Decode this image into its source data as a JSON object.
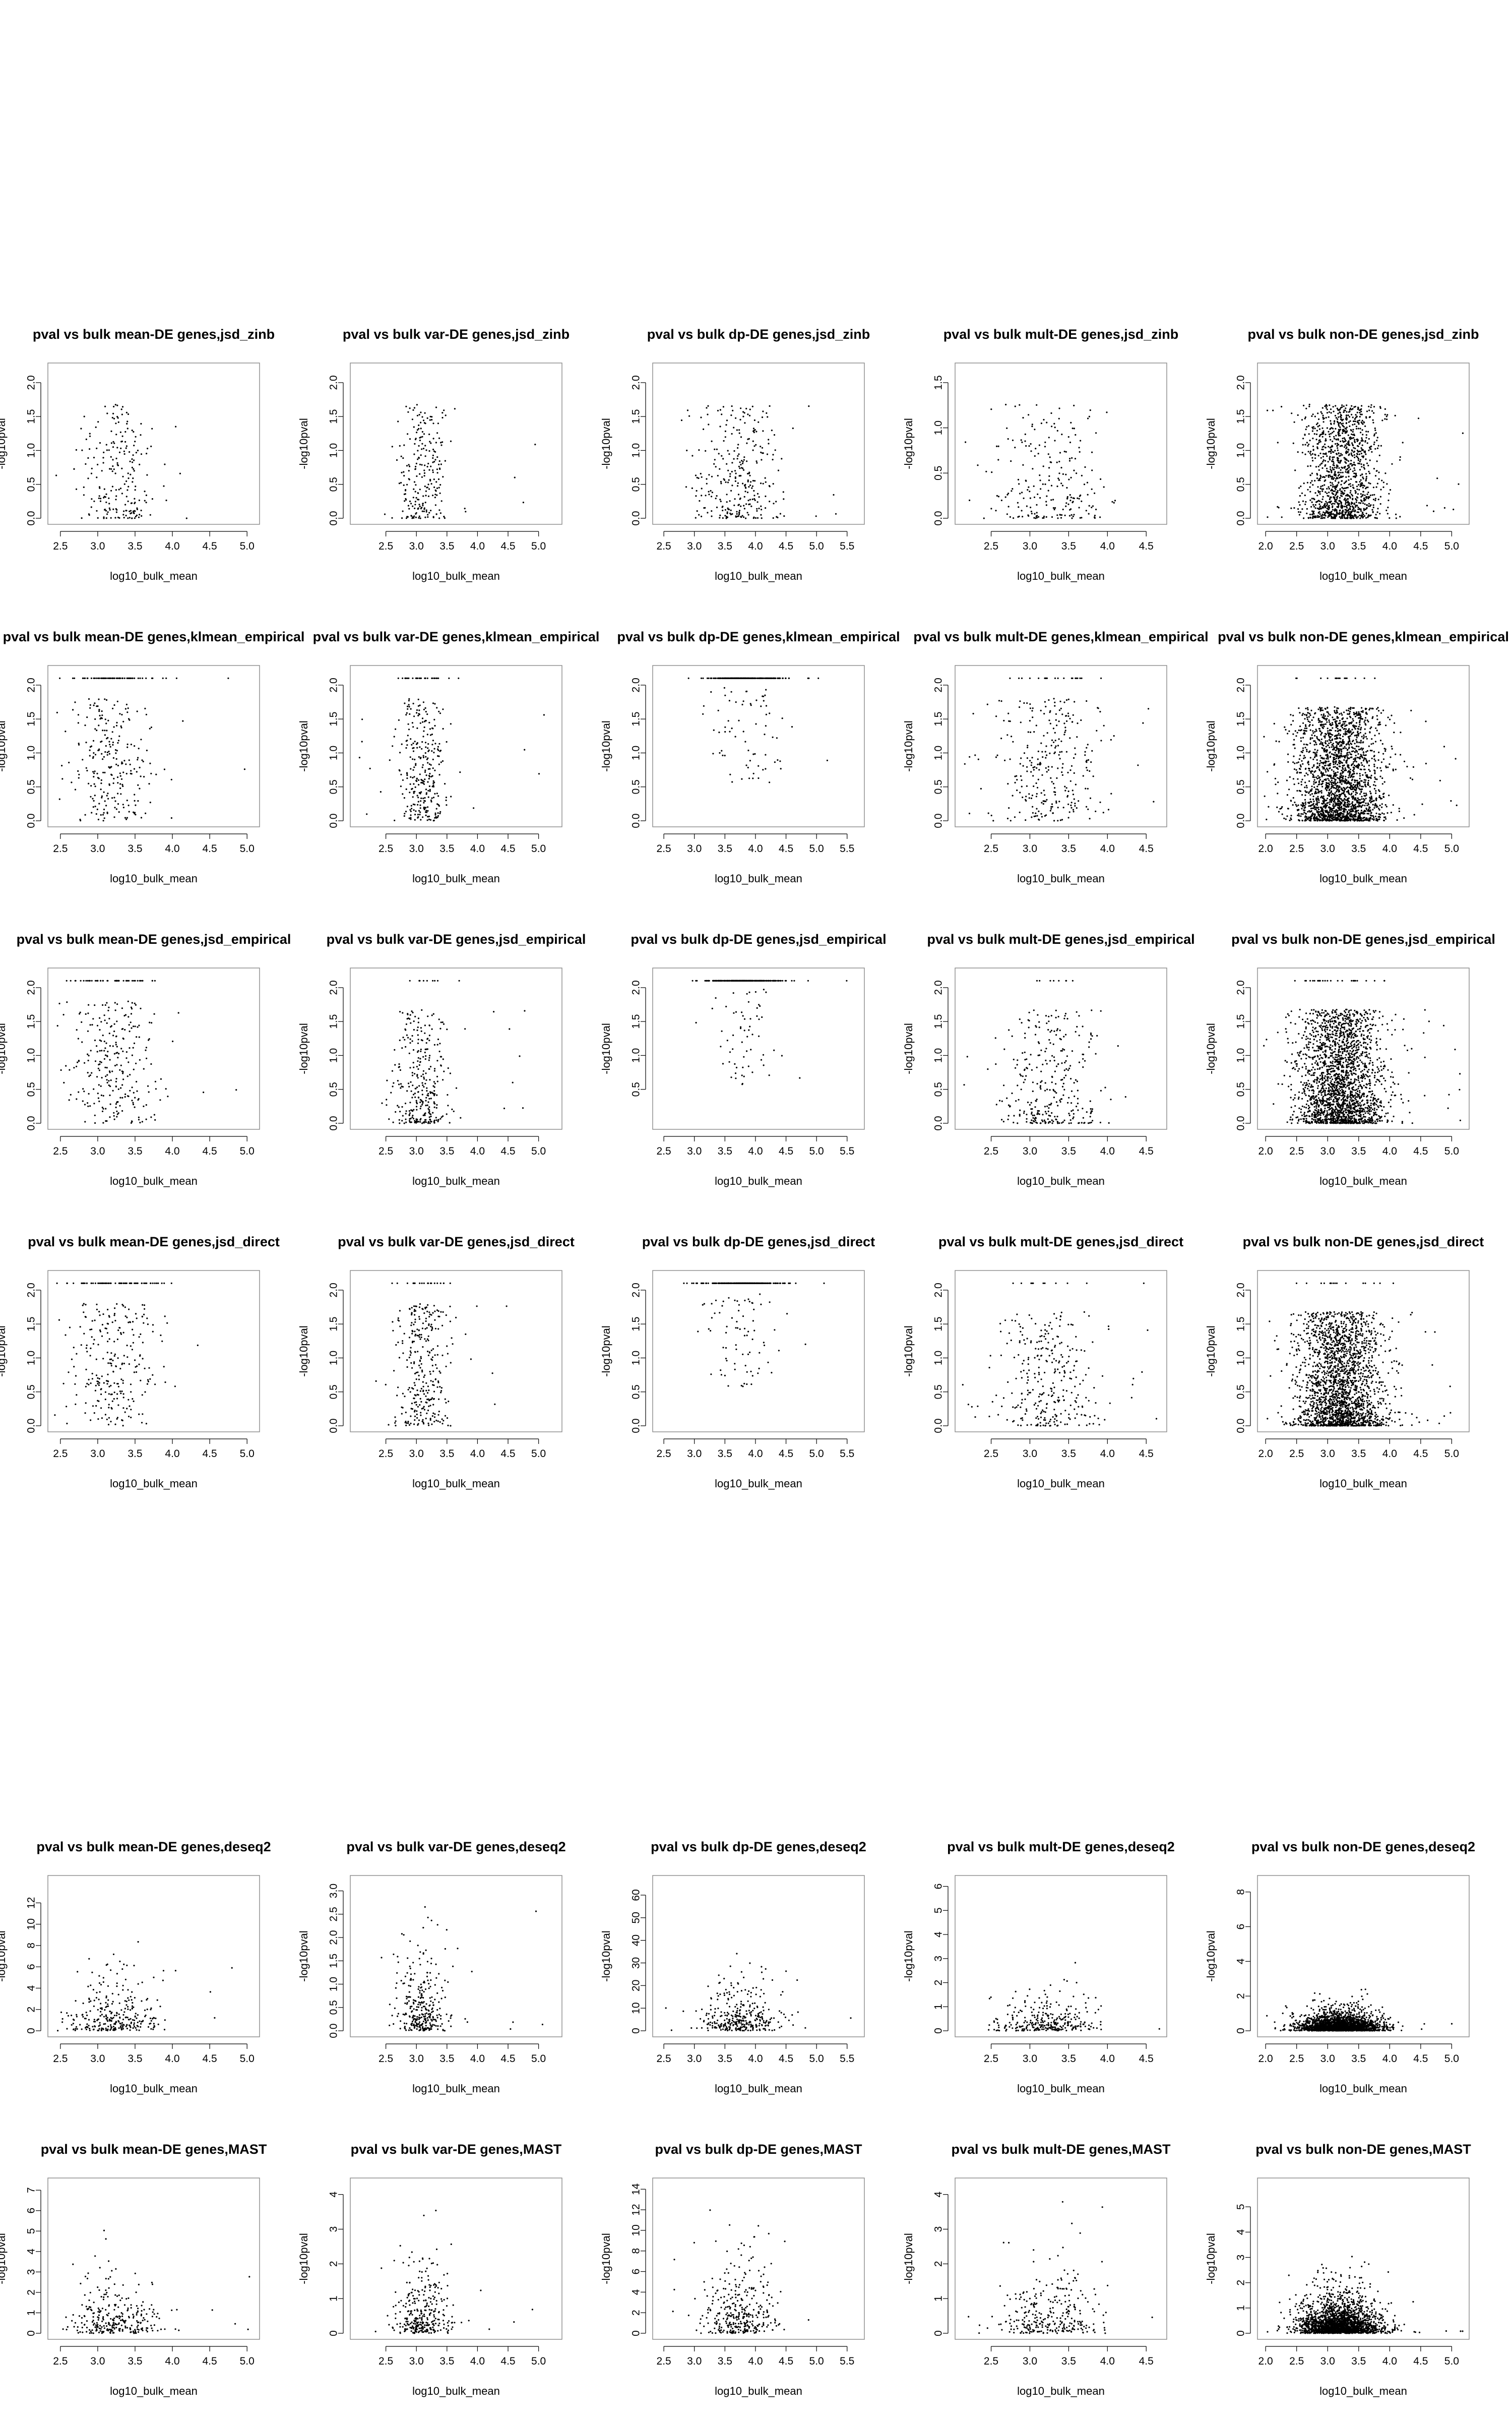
{
  "colors": {
    "background": "#ffffff",
    "points": "#000000",
    "frame": "#888888",
    "axis": "#000000"
  },
  "chart_data": [
    {
      "type": "scatter",
      "title": "pval vs bulk mean-DE genes,jsd_zinb",
      "xlabel": "log10_bulk_mean",
      "ylabel": "-log10pval",
      "xlim": [
        2.4,
        5.1
      ],
      "ylim": [
        0,
        2.2
      ],
      "xticks": [
        2.5,
        3.0,
        3.5,
        4.0,
        4.5,
        5.0
      ],
      "yticks": [
        0.0,
        0.5,
        1.0,
        1.5,
        2.0
      ],
      "n_points": 220,
      "x_center": 3.3,
      "x_spread": 0.25,
      "y_profile": "low",
      "outlier_rate": 0.04,
      "ceiling": false
    },
    {
      "type": "scatter",
      "title": "pval vs bulk var-DE genes,jsd_zinb",
      "xlabel": "log10_bulk_mean",
      "ylabel": "-log10pval",
      "xlim": [
        2.0,
        5.3
      ],
      "ylim": [
        0,
        2.2
      ],
      "xticks": [
        2.5,
        3.0,
        3.5,
        4.0,
        4.5,
        5.0
      ],
      "yticks": [
        0.0,
        0.5,
        1.0,
        1.5,
        2.0
      ],
      "n_points": 240,
      "x_center": 3.1,
      "x_spread": 0.2,
      "y_profile": "low",
      "outlier_rate": 0.04,
      "ceiling": false
    },
    {
      "type": "scatter",
      "title": "pval vs bulk dp-DE genes,jsd_zinb",
      "xlabel": "log10_bulk_mean",
      "ylabel": "-log10pval",
      "xlim": [
        2.4,
        5.7
      ],
      "ylim": [
        0,
        2.2
      ],
      "xticks": [
        2.5,
        3.0,
        3.5,
        4.0,
        4.5,
        5.0,
        5.5
      ],
      "yticks": [
        0.0,
        0.5,
        1.0,
        1.5,
        2.0
      ],
      "n_points": 300,
      "x_center": 3.7,
      "x_spread": 0.35,
      "y_profile": "low",
      "outlier_rate": 0.04,
      "ceiling": false
    },
    {
      "type": "scatter",
      "title": "pval vs bulk mult-DE genes,jsd_zinb",
      "xlabel": "log10_bulk_mean",
      "ylabel": "-log10pval",
      "xlim": [
        2.1,
        4.7
      ],
      "ylim": [
        0,
        1.65
      ],
      "xticks": [
        2.5,
        3.0,
        3.5,
        4.0,
        4.5
      ],
      "yticks": [
        0.0,
        0.5,
        1.0,
        1.5
      ],
      "n_points": 230,
      "x_center": 3.3,
      "x_spread": 0.35,
      "y_profile": "low",
      "outlier_rate": 0.05,
      "ceiling": false
    },
    {
      "type": "scatter",
      "title": "pval vs bulk non-DE genes,jsd_zinb",
      "xlabel": "log10_bulk_mean",
      "ylabel": "-log10pval",
      "xlim": [
        1.95,
        5.2
      ],
      "ylim": [
        0,
        2.2
      ],
      "xticks": [
        2.0,
        2.5,
        3.0,
        3.5,
        4.0,
        4.5,
        5.0
      ],
      "yticks": [
        0.0,
        0.5,
        1.0,
        1.5,
        2.0
      ],
      "n_points": 1300,
      "x_center": 3.25,
      "x_spread": 0.3,
      "y_profile": "low",
      "outlier_rate": 0.03,
      "ceiling": false
    },
    {
      "type": "scatter",
      "title": "pval vs bulk mean-DE genes,klmean_empirical",
      "xlabel": "log10_bulk_mean",
      "ylabel": "-log10pval",
      "xlim": [
        2.4,
        5.1
      ],
      "ylim": [
        0,
        2.2
      ],
      "xticks": [
        2.5,
        3.0,
        3.5,
        4.0,
        4.5,
        5.0
      ],
      "yticks": [
        0.0,
        0.5,
        1.0,
        1.5,
        2.0
      ],
      "n_points": 320,
      "x_center": 3.2,
      "x_spread": 0.3,
      "y_profile": "uniform",
      "outlier_rate": 0.03,
      "ceiling": true,
      "ceiling_frac": 0.2
    },
    {
      "type": "scatter",
      "title": "pval vs bulk var-DE genes,klmean_empirical",
      "xlabel": "log10_bulk_mean",
      "ylabel": "-log10pval",
      "xlim": [
        2.0,
        5.3
      ],
      "ylim": [
        0,
        2.2
      ],
      "xticks": [
        2.5,
        3.0,
        3.5,
        4.0,
        4.5,
        5.0
      ],
      "yticks": [
        0.0,
        0.5,
        1.0,
        1.5,
        2.0
      ],
      "n_points": 330,
      "x_center": 3.1,
      "x_spread": 0.22,
      "y_profile": "mid",
      "outlier_rate": 0.03,
      "ceiling": true,
      "ceiling_frac": 0.08
    },
    {
      "type": "scatter",
      "title": "pval vs bulk dp-DE genes,klmean_empirical",
      "xlabel": "log10_bulk_mean",
      "ylabel": "-log10pval",
      "xlim": [
        2.4,
        5.7
      ],
      "ylim": [
        0,
        2.2
      ],
      "xticks": [
        2.5,
        3.0,
        3.5,
        4.0,
        4.5,
        5.0,
        5.5
      ],
      "yticks": [
        0.0,
        0.5,
        1.0,
        1.5,
        2.0
      ],
      "n_points": 360,
      "x_center": 3.8,
      "x_spread": 0.3,
      "y_profile": "high",
      "outlier_rate": 0.02,
      "ceiling": true,
      "ceiling_frac": 0.82
    },
    {
      "type": "scatter",
      "title": "pval vs bulk mult-DE genes,klmean_empirical",
      "xlabel": "log10_bulk_mean",
      "ylabel": "-log10pval",
      "xlim": [
        2.1,
        4.7
      ],
      "ylim": [
        0,
        2.2
      ],
      "xticks": [
        2.5,
        3.0,
        3.5,
        4.0,
        4.5
      ],
      "yticks": [
        0.0,
        0.5,
        1.0,
        1.5,
        2.0
      ],
      "n_points": 320,
      "x_center": 3.25,
      "x_spread": 0.32,
      "y_profile": "mid",
      "outlier_rate": 0.04,
      "ceiling": true,
      "ceiling_frac": 0.07
    },
    {
      "type": "scatter",
      "title": "pval vs bulk non-DE genes,klmean_empirical",
      "xlabel": "log10_bulk_mean",
      "ylabel": "-log10pval",
      "xlim": [
        1.95,
        5.2
      ],
      "ylim": [
        0,
        2.2
      ],
      "xticks": [
        2.0,
        2.5,
        3.0,
        3.5,
        4.0,
        4.5,
        5.0
      ],
      "yticks": [
        0.0,
        0.5,
        1.0,
        1.5,
        2.0
      ],
      "n_points": 2200,
      "x_center": 3.2,
      "x_spread": 0.35,
      "y_profile": "low",
      "outlier_rate": 0.02,
      "ceiling": true,
      "ceiling_frac": 0.01
    },
    {
      "type": "scatter",
      "title": "pval vs bulk mean-DE genes,jsd_empirical",
      "xlabel": "log10_bulk_mean",
      "ylabel": "-log10pval",
      "xlim": [
        2.4,
        5.1
      ],
      "ylim": [
        0,
        2.2
      ],
      "xticks": [
        2.5,
        3.0,
        3.5,
        4.0,
        4.5,
        5.0
      ],
      "yticks": [
        0.0,
        0.5,
        1.0,
        1.5,
        2.0
      ],
      "n_points": 320,
      "x_center": 3.2,
      "x_spread": 0.3,
      "y_profile": "uniform",
      "outlier_rate": 0.03,
      "ceiling": true,
      "ceiling_frac": 0.15
    },
    {
      "type": "scatter",
      "title": "pval vs bulk var-DE genes,jsd_empirical",
      "xlabel": "log10_bulk_mean",
      "ylabel": "-log10pval",
      "xlim": [
        2.0,
        5.3
      ],
      "ylim": [
        0,
        2.2
      ],
      "xticks": [
        2.5,
        3.0,
        3.5,
        4.0,
        4.5,
        5.0
      ],
      "yticks": [
        0.0,
        0.5,
        1.0,
        1.5,
        2.0
      ],
      "n_points": 330,
      "x_center": 3.1,
      "x_spread": 0.22,
      "y_profile": "low",
      "outlier_rate": 0.03,
      "ceiling": true,
      "ceiling_frac": 0.02
    },
    {
      "type": "scatter",
      "title": "pval vs bulk dp-DE genes,jsd_empirical",
      "xlabel": "log10_bulk_mean",
      "ylabel": "-log10pval",
      "xlim": [
        2.4,
        5.7
      ],
      "ylim": [
        0,
        2.2
      ],
      "xticks": [
        2.5,
        3.0,
        3.5,
        4.0,
        4.5,
        5.0,
        5.5
      ],
      "yticks": [
        0.5,
        1.0,
        1.5,
        2.0
      ],
      "n_points": 360,
      "x_center": 3.8,
      "x_spread": 0.3,
      "y_profile": "high",
      "outlier_rate": 0.02,
      "ceiling": true,
      "ceiling_frac": 0.85
    },
    {
      "type": "scatter",
      "title": "pval vs bulk mult-DE genes,jsd_empirical",
      "xlabel": "log10_bulk_mean",
      "ylabel": "-log10pval",
      "xlim": [
        2.1,
        4.7
      ],
      "ylim": [
        0,
        2.2
      ],
      "xticks": [
        2.5,
        3.0,
        3.5,
        4.0,
        4.5
      ],
      "yticks": [
        0.0,
        0.5,
        1.0,
        1.5,
        2.0
      ],
      "n_points": 320,
      "x_center": 3.25,
      "x_spread": 0.32,
      "y_profile": "low",
      "outlier_rate": 0.04,
      "ceiling": true,
      "ceiling_frac": 0.03
    },
    {
      "type": "scatter",
      "title": "pval vs bulk non-DE genes,jsd_empirical",
      "xlabel": "log10_bulk_mean",
      "ylabel": "-log10pval",
      "xlim": [
        1.95,
        5.2
      ],
      "ylim": [
        0,
        2.2
      ],
      "xticks": [
        2.0,
        2.5,
        3.0,
        3.5,
        4.0,
        4.5,
        5.0
      ],
      "yticks": [
        0.0,
        0.5,
        1.0,
        1.5,
        2.0
      ],
      "n_points": 2200,
      "x_center": 3.2,
      "x_spread": 0.35,
      "y_profile": "low",
      "outlier_rate": 0.02,
      "ceiling": true,
      "ceiling_frac": 0.01
    },
    {
      "type": "scatter",
      "title": "pval vs bulk mean-DE genes,jsd_direct",
      "xlabel": "log10_bulk_mean",
      "ylabel": "-log10pval",
      "xlim": [
        2.4,
        5.1
      ],
      "ylim": [
        0,
        2.2
      ],
      "xticks": [
        2.5,
        3.0,
        3.5,
        4.0,
        4.5,
        5.0
      ],
      "yticks": [
        0.0,
        0.5,
        1.0,
        1.5,
        2.0
      ],
      "n_points": 320,
      "x_center": 3.2,
      "x_spread": 0.3,
      "y_profile": "uniform",
      "outlier_rate": 0.03,
      "ceiling": true,
      "ceiling_frac": 0.2
    },
    {
      "type": "scatter",
      "title": "pval vs bulk var-DE genes,jsd_direct",
      "xlabel": "log10_bulk_mean",
      "ylabel": "-log10pval",
      "xlim": [
        2.0,
        5.3
      ],
      "ylim": [
        0,
        2.2
      ],
      "xticks": [
        2.5,
        3.0,
        3.5,
        4.0,
        4.5,
        5.0
      ],
      "yticks": [
        0.0,
        0.5,
        1.0,
        1.5,
        2.0
      ],
      "n_points": 330,
      "x_center": 3.1,
      "x_spread": 0.22,
      "y_profile": "mid",
      "outlier_rate": 0.03,
      "ceiling": true,
      "ceiling_frac": 0.06
    },
    {
      "type": "scatter",
      "title": "pval vs bulk dp-DE genes,jsd_direct",
      "xlabel": "log10_bulk_mean",
      "ylabel": "-log10pval",
      "xlim": [
        2.4,
        5.7
      ],
      "ylim": [
        0,
        2.2
      ],
      "xticks": [
        2.5,
        3.0,
        3.5,
        4.0,
        4.5,
        5.0,
        5.5
      ],
      "yticks": [
        0.0,
        0.5,
        1.0,
        1.5,
        2.0
      ],
      "n_points": 360,
      "x_center": 3.8,
      "x_spread": 0.3,
      "y_profile": "high",
      "outlier_rate": 0.02,
      "ceiling": true,
      "ceiling_frac": 0.82
    },
    {
      "type": "scatter",
      "title": "pval vs bulk mult-DE genes,jsd_direct",
      "xlabel": "log10_bulk_mean",
      "ylabel": "-log10pval",
      "xlim": [
        2.1,
        4.7
      ],
      "ylim": [
        0,
        2.2
      ],
      "xticks": [
        2.5,
        3.0,
        3.5,
        4.0,
        4.5
      ],
      "yticks": [
        0.0,
        0.5,
        1.0,
        1.5,
        2.0
      ],
      "n_points": 320,
      "x_center": 3.25,
      "x_spread": 0.32,
      "y_profile": "low",
      "outlier_rate": 0.04,
      "ceiling": true,
      "ceiling_frac": 0.05
    },
    {
      "type": "scatter",
      "title": "pval vs bulk non-DE genes,jsd_direct",
      "xlabel": "log10_bulk_mean",
      "ylabel": "-log10pval",
      "xlim": [
        1.95,
        5.2
      ],
      "ylim": [
        0,
        2.2
      ],
      "xticks": [
        2.0,
        2.5,
        3.0,
        3.5,
        4.0,
        4.5,
        5.0
      ],
      "yticks": [
        0.0,
        0.5,
        1.0,
        1.5,
        2.0
      ],
      "n_points": 2200,
      "x_center": 3.2,
      "x_spread": 0.35,
      "y_profile": "low",
      "outlier_rate": 0.02,
      "ceiling": true,
      "ceiling_frac": 0.01
    },
    {
      "type": "scatter",
      "title": "pval vs bulk mean-DE genes,deseq2",
      "xlabel": "log10_bulk_mean",
      "ylabel": "-log10pval",
      "xlim": [
        2.4,
        5.1
      ],
      "ylim": [
        0,
        14
      ],
      "xticks": [
        2.5,
        3.0,
        3.5,
        4.0,
        4.5,
        5.0
      ],
      "yticks": [
        0,
        2,
        4,
        6,
        8,
        10,
        12
      ],
      "n_points": 300,
      "x_center": 3.2,
      "x_spread": 0.3,
      "y_profile": "skew",
      "y_scale": 1.6,
      "outlier_rate": 0.03,
      "ceiling": false
    },
    {
      "type": "scatter",
      "title": "pval vs bulk var-DE genes,deseq2",
      "xlabel": "log10_bulk_mean",
      "ylabel": "-log10pval",
      "xlim": [
        2.0,
        5.3
      ],
      "ylim": [
        0,
        3.2
      ],
      "xticks": [
        2.5,
        3.0,
        3.5,
        4.0,
        4.5,
        5.0
      ],
      "yticks": [
        0.0,
        0.5,
        1.0,
        1.5,
        2.0,
        2.5,
        3.0
      ],
      "n_points": 320,
      "x_center": 3.1,
      "x_spread": 0.22,
      "y_profile": "skew",
      "y_scale": 0.55,
      "outlier_rate": 0.03,
      "ceiling": false
    },
    {
      "type": "scatter",
      "title": "pval vs bulk dp-DE genes,deseq2",
      "xlabel": "log10_bulk_mean",
      "ylabel": "-log10pval",
      "xlim": [
        2.4,
        5.7
      ],
      "ylim": [
        0,
        66
      ],
      "xticks": [
        2.5,
        3.0,
        3.5,
        4.0,
        4.5,
        5.0,
        5.5
      ],
      "yticks": [
        0,
        10,
        20,
        30,
        40,
        50,
        60
      ],
      "n_points": 340,
      "x_center": 3.75,
      "x_spread": 0.32,
      "y_profile": "skew",
      "y_scale": 7,
      "outlier_rate": 0.03,
      "ceiling": false
    },
    {
      "type": "scatter",
      "title": "pval vs bulk mult-DE genes,deseq2",
      "xlabel": "log10_bulk_mean",
      "ylabel": "-log10pval",
      "xlim": [
        2.1,
        4.7
      ],
      "ylim": [
        0,
        6.2
      ],
      "xticks": [
        2.5,
        3.0,
        3.5,
        4.0,
        4.5
      ],
      "yticks": [
        0,
        1,
        2,
        3,
        4,
        5,
        6
      ],
      "n_points": 300,
      "x_center": 3.25,
      "x_spread": 0.32,
      "y_profile": "skew",
      "y_scale": 0.45,
      "outlier_rate": 0.03,
      "ceiling": false
    },
    {
      "type": "scatter",
      "title": "pval vs bulk non-DE genes,deseq2",
      "xlabel": "log10_bulk_mean",
      "ylabel": "-log10pval",
      "xlim": [
        1.95,
        5.2
      ],
      "ylim": [
        0,
        8.6
      ],
      "xticks": [
        2.0,
        2.5,
        3.0,
        3.5,
        4.0,
        4.5,
        5.0
      ],
      "yticks": [
        0,
        2,
        4,
        6,
        8
      ],
      "n_points": 2200,
      "x_center": 3.2,
      "x_spread": 0.32,
      "y_profile": "skew",
      "y_scale": 0.35,
      "outlier_rate": 0.01,
      "ceiling": false
    },
    {
      "type": "scatter",
      "title": "pval vs bulk mean-DE genes,MAST",
      "xlabel": "log10_bulk_mean",
      "ylabel": "-log10pval",
      "xlim": [
        2.4,
        5.1
      ],
      "ylim": [
        0,
        7.3
      ],
      "xticks": [
        2.5,
        3.0,
        3.5,
        4.0,
        4.5,
        5.0
      ],
      "yticks": [
        0,
        1,
        2,
        3,
        4,
        5,
        6,
        7
      ],
      "n_points": 300,
      "x_center": 3.2,
      "x_spread": 0.3,
      "y_profile": "skew",
      "y_scale": 0.9,
      "outlier_rate": 0.03,
      "ceiling": false
    },
    {
      "type": "scatter",
      "title": "pval vs bulk var-DE genes,MAST",
      "xlabel": "log10_bulk_mean",
      "ylabel": "-log10pval",
      "xlim": [
        2.0,
        5.3
      ],
      "ylim": [
        0,
        4.3
      ],
      "xticks": [
        2.5,
        3.0,
        3.5,
        4.0,
        4.5,
        5.0
      ],
      "yticks": [
        0,
        1,
        2,
        3,
        4
      ],
      "n_points": 320,
      "x_center": 3.1,
      "x_spread": 0.22,
      "y_profile": "skew",
      "y_scale": 0.7,
      "outlier_rate": 0.03,
      "ceiling": false
    },
    {
      "type": "scatter",
      "title": "pval vs bulk dp-DE genes,MAST",
      "xlabel": "log10_bulk_mean",
      "ylabel": "-log10pval",
      "xlim": [
        2.4,
        5.7
      ],
      "ylim": [
        0,
        14.5
      ],
      "xticks": [
        2.5,
        3.0,
        3.5,
        4.0,
        4.5,
        5.0,
        5.5
      ],
      "yticks": [
        0,
        2,
        4,
        6,
        8,
        10,
        12,
        14
      ],
      "n_points": 340,
      "x_center": 3.75,
      "x_spread": 0.3,
      "y_profile": "skew",
      "y_scale": 2.6,
      "outlier_rate": 0.03,
      "ceiling": false
    },
    {
      "type": "scatter",
      "title": "pval vs bulk mult-DE genes,MAST",
      "xlabel": "log10_bulk_mean",
      "ylabel": "-log10pval",
      "xlim": [
        2.1,
        4.7
      ],
      "ylim": [
        0,
        4.3
      ],
      "xticks": [
        2.5,
        3.0,
        3.5,
        4.0,
        4.5
      ],
      "yticks": [
        0,
        1,
        2,
        3,
        4
      ],
      "n_points": 300,
      "x_center": 3.25,
      "x_spread": 0.32,
      "y_profile": "skew",
      "y_scale": 0.6,
      "outlier_rate": 0.03,
      "ceiling": false
    },
    {
      "type": "scatter",
      "title": "pval vs bulk non-DE genes,MAST",
      "xlabel": "log10_bulk_mean",
      "ylabel": "-log10pval",
      "xlim": [
        1.95,
        5.2
      ],
      "ylim": [
        0,
        5.9
      ],
      "xticks": [
        2.0,
        2.5,
        3.0,
        3.5,
        4.0,
        4.5,
        5.0
      ],
      "yticks": [
        0,
        1,
        2,
        3,
        4,
        5
      ],
      "n_points": 2200,
      "x_center": 3.2,
      "x_spread": 0.32,
      "y_profile": "skew",
      "y_scale": 0.45,
      "outlier_rate": 0.01,
      "ceiling": false
    }
  ]
}
